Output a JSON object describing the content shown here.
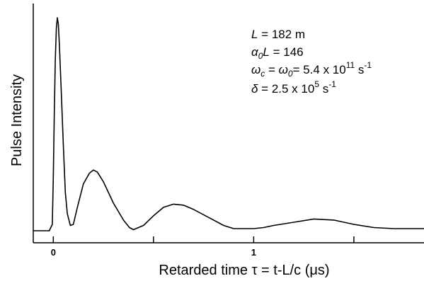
{
  "chart_data": {
    "type": "line",
    "title": "",
    "xlabel": "Retarded time τ = t-L/c (μs)",
    "ylabel": "Pulse Intensity",
    "xlim": [
      -0.1,
      1.85
    ],
    "ylim": [
      0,
      1.0
    ],
    "x_ticks": [
      0,
      0.5,
      1,
      1.5
    ],
    "x_tick_labels": [
      "0",
      "",
      "1",
      ""
    ],
    "y_ticks": [],
    "grid": false,
    "legend": "none",
    "series": [
      {
        "color": "#000000",
        "points": [
          [
            -0.1,
            0.0
          ],
          [
            -0.02,
            0.0
          ],
          [
            -0.005,
            0.03
          ],
          [
            0.0,
            0.25
          ],
          [
            0.005,
            0.55
          ],
          [
            0.01,
            0.8
          ],
          [
            0.015,
            0.95
          ],
          [
            0.02,
            1.0
          ],
          [
            0.025,
            0.97
          ],
          [
            0.03,
            0.88
          ],
          [
            0.04,
            0.65
          ],
          [
            0.05,
            0.4
          ],
          [
            0.06,
            0.18
          ],
          [
            0.07,
            0.08
          ],
          [
            0.085,
            0.025
          ],
          [
            0.1,
            0.03
          ],
          [
            0.12,
            0.11
          ],
          [
            0.15,
            0.22
          ],
          [
            0.18,
            0.27
          ],
          [
            0.2,
            0.285
          ],
          [
            0.22,
            0.275
          ],
          [
            0.25,
            0.23
          ],
          [
            0.3,
            0.13
          ],
          [
            0.35,
            0.05
          ],
          [
            0.38,
            0.015
          ],
          [
            0.4,
            0.005
          ],
          [
            0.45,
            0.025
          ],
          [
            0.5,
            0.07
          ],
          [
            0.55,
            0.11
          ],
          [
            0.6,
            0.125
          ],
          [
            0.65,
            0.12
          ],
          [
            0.7,
            0.1
          ],
          [
            0.8,
            0.05
          ],
          [
            0.85,
            0.025
          ],
          [
            0.9,
            0.01
          ],
          [
            1.0,
            0.01
          ],
          [
            1.05,
            0.015
          ],
          [
            1.1,
            0.025
          ],
          [
            1.2,
            0.04
          ],
          [
            1.3,
            0.055
          ],
          [
            1.4,
            0.05
          ],
          [
            1.5,
            0.03
          ],
          [
            1.6,
            0.015
          ],
          [
            1.7,
            0.01
          ],
          [
            1.85,
            0.01
          ]
        ]
      }
    ],
    "annotations": {
      "L": {
        "var": "L",
        "text": " = 182 m"
      },
      "alpha": {
        "var": "α",
        "sub": "0",
        "var2": "L",
        "text": " = 146"
      },
      "omega": {
        "var": "ω",
        "sub": "c",
        "mid": " = ",
        "var2": "ω",
        "sub2": "0",
        "text": "= 5.4 x 10",
        "sup": "11",
        "unit": " s",
        "unit_sup": "-1"
      },
      "delta": {
        "var": "δ",
        "text": " = 2.5 x 10",
        "sup": "5",
        "unit": " s",
        "unit_sup": "-1"
      }
    }
  }
}
